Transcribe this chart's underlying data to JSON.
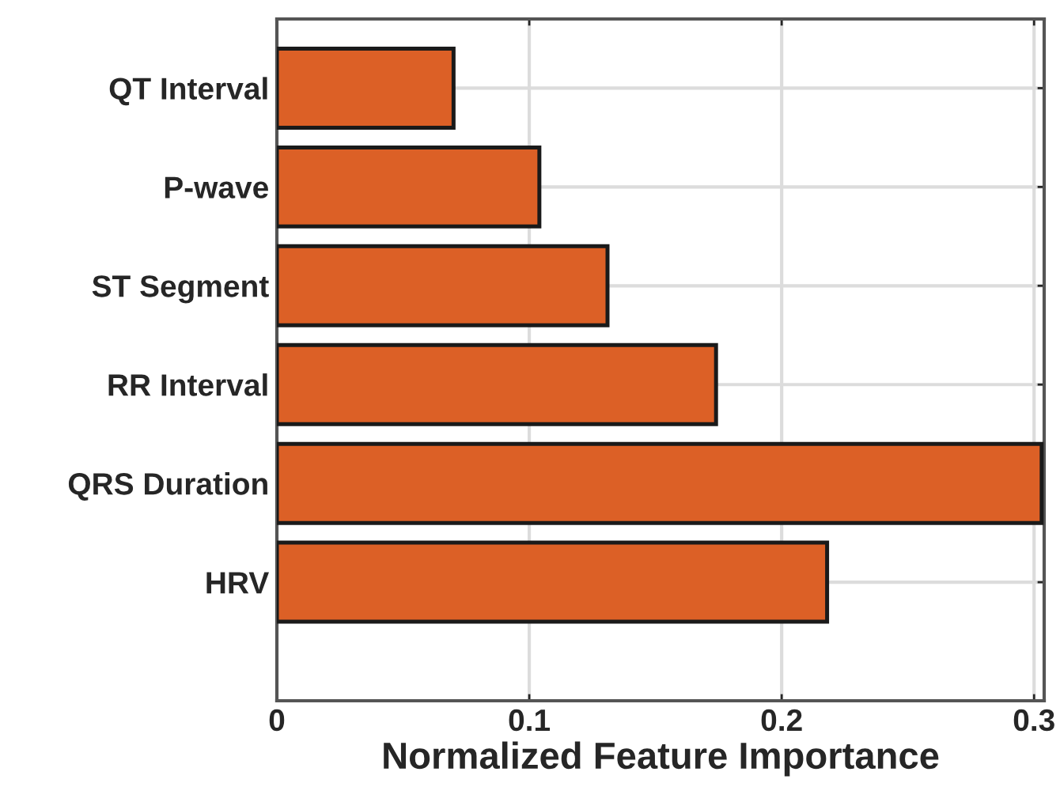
{
  "chart_data": {
    "type": "bar",
    "orientation": "horizontal",
    "xlabel": "Normalized Feature Importance",
    "categories": [
      "QT Interval",
      "P-wave",
      "ST Segment",
      "RR Interval",
      "QRS Duration",
      "HRV"
    ],
    "values": [
      0.07,
      0.104,
      0.131,
      0.174,
      0.303,
      0.218
    ],
    "color": "#dc6026",
    "xlim": [
      0,
      0.304
    ],
    "xticks": [
      0,
      0.1,
      0.2,
      0.3
    ],
    "grid": true
  }
}
